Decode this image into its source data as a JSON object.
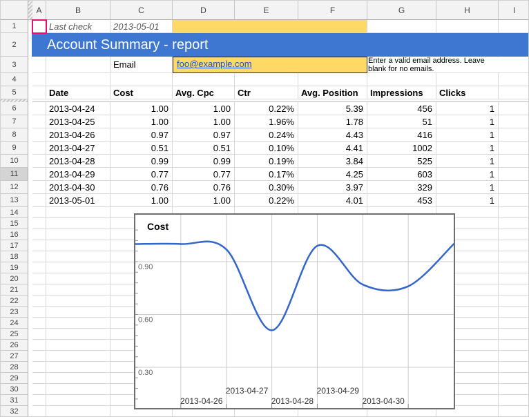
{
  "grid": {
    "column_letters": [
      "A",
      "B",
      "C",
      "D",
      "E",
      "F",
      "G",
      "H",
      "I"
    ],
    "row_count": 32,
    "highlighted_row": 11,
    "selected_cell": "A1",
    "frozen_rows": 5
  },
  "top": {
    "last_check_label": "Last check",
    "last_check_value": "2013-05-01",
    "banner_title": "Account Summary - report",
    "email_label": "Email",
    "email_value": "foo@example.com",
    "email_note": "Enter a valid email address. Leave blank for no emails."
  },
  "table": {
    "headers": [
      "Date",
      "Cost",
      "Avg. Cpc",
      "Ctr",
      "Avg. Position",
      "Impressions",
      "Clicks"
    ],
    "rows": [
      [
        "2013-04-24",
        "1.00",
        "1.00",
        "0.22%",
        "5.39",
        "456",
        "1"
      ],
      [
        "2013-04-25",
        "1.00",
        "1.00",
        "1.96%",
        "1.78",
        "51",
        "1"
      ],
      [
        "2013-04-26",
        "0.97",
        "0.97",
        "0.24%",
        "4.43",
        "416",
        "1"
      ],
      [
        "2013-04-27",
        "0.51",
        "0.51",
        "0.10%",
        "4.41",
        "1002",
        "1"
      ],
      [
        "2013-04-28",
        "0.99",
        "0.99",
        "0.19%",
        "3.84",
        "525",
        "1"
      ],
      [
        "2013-04-29",
        "0.77",
        "0.77",
        "0.17%",
        "4.25",
        "603",
        "1"
      ],
      [
        "2013-04-30",
        "0.76",
        "0.76",
        "0.30%",
        "3.97",
        "329",
        "1"
      ],
      [
        "2013-05-01",
        "1.00",
        "1.00",
        "0.22%",
        "4.01",
        "453",
        "1"
      ]
    ]
  },
  "chart_data": {
    "type": "line",
    "title": "Cost",
    "x": [
      "2013-04-24",
      "2013-04-25",
      "2013-04-26",
      "2013-04-27",
      "2013-04-28",
      "2013-04-29",
      "2013-04-30",
      "2013-05-01"
    ],
    "values": [
      1.0,
      1.0,
      0.97,
      0.51,
      0.99,
      0.77,
      0.76,
      1.0
    ],
    "x_tick_labels": [
      "2013-04-26",
      "2013-04-27",
      "2013-04-28",
      "2013-04-29",
      "2013-04-30"
    ],
    "y_ticks": [
      0.9,
      0.6,
      0.3
    ],
    "y_tick_labels": [
      "0.90",
      "0.60",
      "0.30"
    ],
    "ylim": [
      0.06,
      1.17
    ],
    "grid": true,
    "legend": "none",
    "smooth": true,
    "line_color": "#3366cc"
  },
  "colors": {
    "banner_blue": "#3d77d1",
    "highlight_yellow": "#ffd966",
    "link_blue": "#1155cc",
    "selection_pink": "#ed0c6e",
    "chart_line_blue": "#3366cc"
  }
}
